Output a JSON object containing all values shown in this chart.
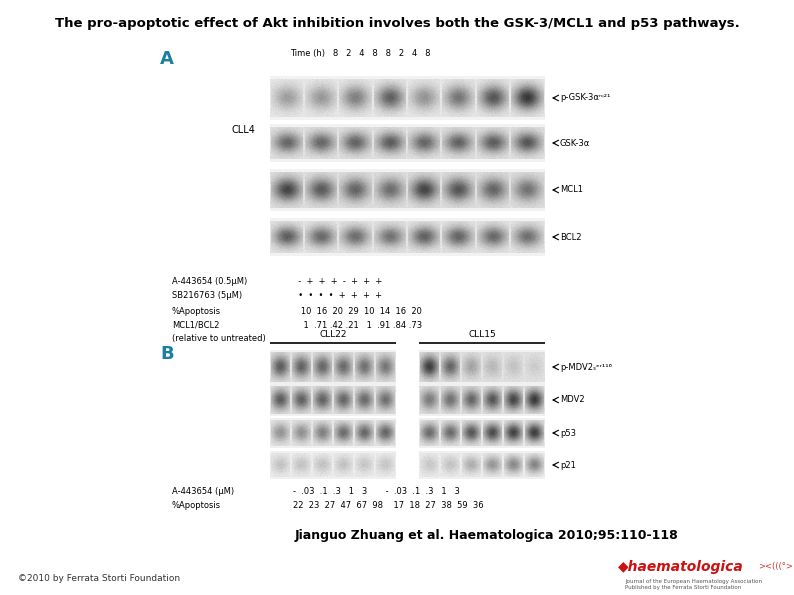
{
  "title": "The pro-apoptotic effect of Akt inhibition involves both the GSK-3/MCL1 and p53 pathways.",
  "title_fontsize": 9.5,
  "citation": "Jianguo Zhuang et al. Haematologica 2010;95:110-118",
  "citation_fontsize": 9,
  "copyright": "©2010 by Ferrata Storti Foundation",
  "copyright_fontsize": 6.5,
  "bg_color": "#ffffff",
  "panel_a_label_color": "#1a7fa0",
  "panel_b_label_color": "#1a7fa0",
  "panel_a_time_label": "Time (h)   8   2   4   8   8   2   4   8",
  "panel_a_left_label": "CLL4",
  "panel_a_row_labels": [
    "A-443654 (0.5μM)",
    "SB216763 (5μM)",
    "%Apoptosis",
    "MCL1/BCL2",
    "(relative to untreated)"
  ],
  "panel_a_row_values": [
    "  -   +   +   +   -   +   +   +",
    "  •   •   •   •   +   +   +   +",
    "  10  16  20  29  10  14  16  20",
    "   1  .71 .42 .21   1  .91 .84 .73",
    ""
  ],
  "panel_a_blot_labels": [
    "p-GSK-3αⁿᵎ²¹",
    "GSK-3α",
    "MCL1",
    "BCL2"
  ],
  "panel_b_group_labels": [
    "CLL22",
    "CLL15"
  ],
  "panel_b_blot_labels": [
    "p-MDV2ₛᵉʳ¹¹⁶",
    "MDV2",
    "p53",
    "p21"
  ],
  "panel_b_row_labels": [
    "A-443654 (μM)",
    "%Apoptosis"
  ],
  "panel_b_row_values": [
    "  -  .03  .1  .3   1   3      -  .03  .1  .3   1   3",
    "  22  23  27  47  67  98    17  18  27  38  59  36"
  ]
}
